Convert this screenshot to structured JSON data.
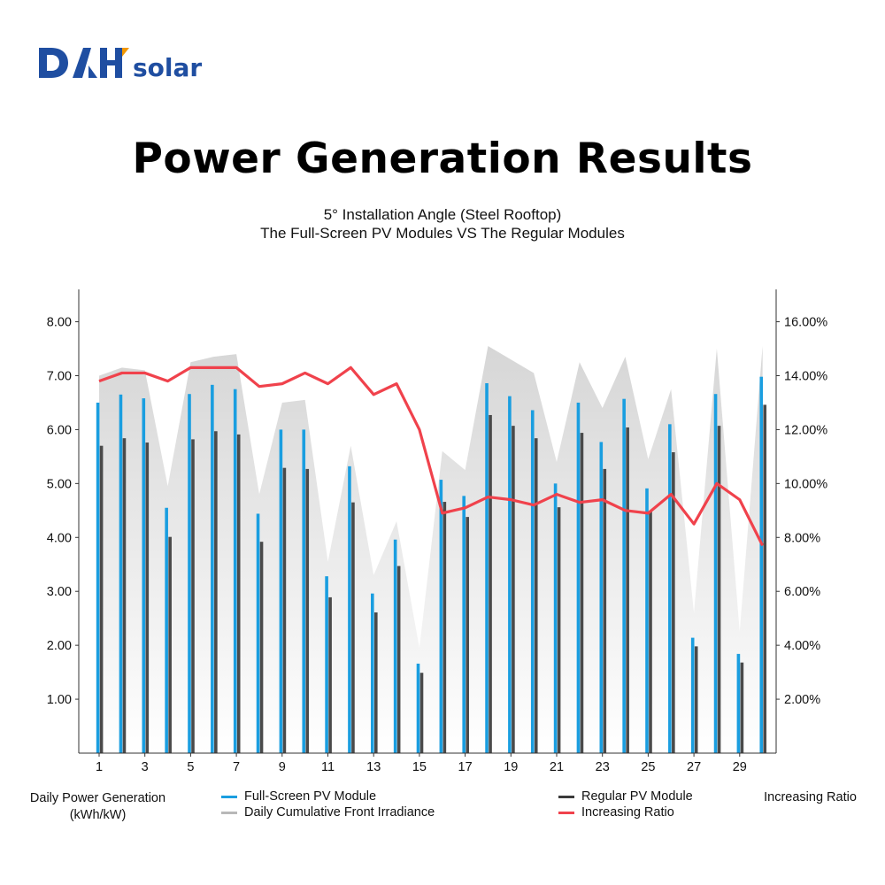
{
  "brand": {
    "logo_text": "DAH",
    "logo_suffix": "solar",
    "primary_color": "#1f4ea1",
    "accent_color": "#f39800"
  },
  "title": "Power Generation Results",
  "subtitle_line1": "5°   Installation Angle (Steel Rooftop)",
  "subtitle_line2": "The Full-Screen PV Modules VS The Regular Modules",
  "chart_data": {
    "type": "bar",
    "x": [
      1,
      2,
      3,
      4,
      5,
      6,
      7,
      8,
      9,
      10,
      11,
      12,
      13,
      14,
      15,
      16,
      17,
      18,
      19,
      20,
      21,
      22,
      23,
      24,
      25,
      26,
      27,
      28,
      29,
      30
    ],
    "x_tick_labels": [
      "1",
      "3",
      "5",
      "7",
      "9",
      "11",
      "13",
      "15",
      "17",
      "19",
      "21",
      "23",
      "25",
      "27",
      "29"
    ],
    "left_axis": {
      "label_line1": "Daily Power Generation",
      "label_line2": "(kWh/kW)",
      "tick_labels": [
        "1.00",
        "2.00",
        "3.00",
        "4.00",
        "5.00",
        "6.00",
        "7.00",
        "8.00"
      ],
      "ylim": [
        0,
        8.6
      ]
    },
    "right_axis": {
      "label": "Increasing Ratio",
      "tick_labels": [
        "2.00%",
        "4.00%",
        "6.00%",
        "8.00%",
        "10.00%",
        "12.00%",
        "14.00%",
        "16.00%"
      ],
      "ylim": [
        0,
        17.2
      ]
    },
    "series": [
      {
        "name": "Full-Screen PV Module",
        "type": "bar",
        "axis": "left",
        "color": "#1a9ee0",
        "values": [
          6.5,
          6.65,
          6.58,
          4.55,
          6.66,
          6.83,
          6.75,
          4.44,
          6.0,
          6.0,
          3.28,
          5.32,
          2.96,
          3.96,
          1.66,
          5.07,
          4.77,
          6.86,
          6.62,
          6.36,
          5.0,
          6.5,
          5.77,
          6.57,
          4.91,
          6.1,
          2.14,
          6.66,
          1.84,
          6.98
        ]
      },
      {
        "name": "Regular PV Module",
        "type": "bar",
        "axis": "left",
        "color": "#4a4a4a",
        "values": [
          5.7,
          5.84,
          5.76,
          4.01,
          5.82,
          5.97,
          5.91,
          3.92,
          5.29,
          5.27,
          2.89,
          4.65,
          2.61,
          3.47,
          1.49,
          4.66,
          4.38,
          6.27,
          6.07,
          5.84,
          4.56,
          5.94,
          5.27,
          6.04,
          4.49,
          5.58,
          1.98,
          6.07,
          1.68,
          6.46
        ]
      },
      {
        "name": "Daily Cumulative Front Irradiance",
        "type": "area",
        "axis": "left",
        "color": "#d2d2d2",
        "values": [
          7.0,
          7.15,
          7.1,
          4.95,
          7.25,
          7.35,
          7.4,
          4.8,
          6.5,
          6.55,
          3.55,
          5.7,
          3.3,
          4.3,
          1.95,
          5.6,
          5.25,
          7.55,
          7.3,
          7.05,
          5.4,
          7.25,
          6.4,
          7.35,
          5.45,
          6.75,
          2.6,
          7.5,
          2.25,
          7.55
        ]
      },
      {
        "name": "Increasing Ratio",
        "type": "line",
        "axis": "right",
        "color": "#f0424c",
        "values": [
          13.8,
          14.1,
          14.1,
          13.8,
          14.3,
          14.3,
          14.3,
          13.6,
          13.7,
          14.1,
          13.7,
          14.3,
          13.3,
          13.7,
          12.0,
          8.9,
          9.1,
          9.5,
          9.4,
          9.2,
          9.6,
          9.3,
          9.4,
          9.0,
          8.9,
          9.6,
          8.5,
          10.0,
          9.4,
          7.7
        ]
      }
    ],
    "grid": false,
    "legend": [
      {
        "label": "Full-Screen PV Module",
        "color": "#1a9ee0"
      },
      {
        "label": "Daily Cumulative Front Irradiance",
        "color": "#b8b8b8"
      },
      {
        "label": "Regular PV Module",
        "color": "#3a3a3a"
      },
      {
        "label": "Increasing Ratio",
        "color": "#f0424c"
      }
    ]
  }
}
